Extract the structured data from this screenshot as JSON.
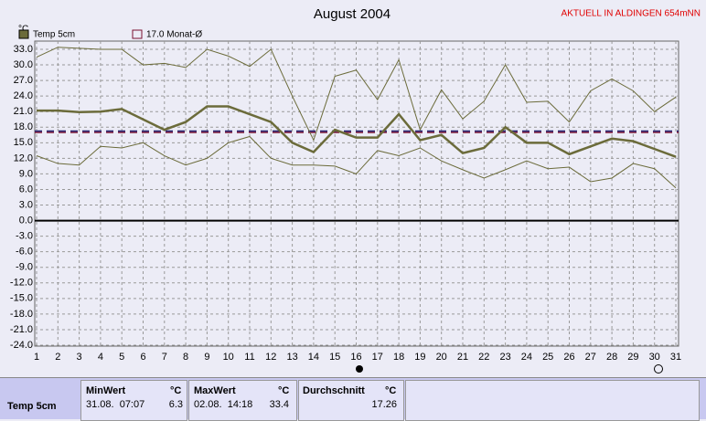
{
  "chart_data": {
    "type": "line",
    "title": "August 2004",
    "note": "AKTUELL IN ALDINGEN 654mNN",
    "unit": "°C",
    "x": [
      1,
      2,
      3,
      4,
      5,
      6,
      7,
      8,
      9,
      10,
      11,
      12,
      13,
      14,
      15,
      16,
      17,
      18,
      19,
      20,
      21,
      22,
      23,
      24,
      25,
      26,
      27,
      28,
      29,
      30,
      31
    ],
    "xlim": [
      1,
      31
    ],
    "xticks": [
      1,
      2,
      3,
      4,
      5,
      6,
      7,
      8,
      9,
      10,
      11,
      12,
      13,
      14,
      15,
      16,
      17,
      18,
      19,
      20,
      21,
      22,
      23,
      24,
      25,
      26,
      27,
      28,
      29,
      30,
      31
    ],
    "ylim": [
      -24,
      33
    ],
    "yticks": [
      {
        "value": 33,
        "label": "33.0"
      },
      {
        "value": 30,
        "label": "30.0"
      },
      {
        "value": 27,
        "label": "27.0"
      },
      {
        "value": 24,
        "label": "24.0"
      },
      {
        "value": 21,
        "label": "21.0"
      },
      {
        "value": 18,
        "label": "18.0"
      },
      {
        "value": 15,
        "label": "15.0"
      },
      {
        "value": 12,
        "label": "12.0"
      },
      {
        "value": 9,
        "label": "9.0"
      },
      {
        "value": 6,
        "label": "6.0"
      },
      {
        "value": 3,
        "label": "3.0"
      },
      {
        "value": 0,
        "label": "0.0"
      },
      {
        "value": -3,
        "label": "-3.0"
      },
      {
        "value": -6,
        "label": "-6.0"
      },
      {
        "value": -9,
        "label": "-9.0"
      },
      {
        "value": -12,
        "label": "-12.0"
      },
      {
        "value": -15,
        "label": "-15.0"
      },
      {
        "value": -18,
        "label": "-18.0"
      },
      {
        "value": -21,
        "label": "-21.0"
      },
      {
        "value": -24,
        "label": "-24.0"
      }
    ],
    "grid": true,
    "series": [
      {
        "name": "Temp 5cm",
        "color": "#6b6b3a",
        "values": [
          21.2,
          21.2,
          20.9,
          21.0,
          21.5,
          19.5,
          17.5,
          19.0,
          22.0,
          22.0,
          20.5,
          19.0,
          15.0,
          13.2,
          17.5,
          16.0,
          16.0,
          20.5,
          15.5,
          16.5,
          13.0,
          14.0,
          18.0,
          15.0,
          15.0,
          12.8,
          14.3,
          15.8,
          15.3,
          13.8,
          12.3
        ],
        "max": [
          31.5,
          33.4,
          33.2,
          33.0,
          33.0,
          30.0,
          30.3,
          29.5,
          33.0,
          31.7,
          29.7,
          33.0,
          24.0,
          15.5,
          27.8,
          29.0,
          23.3,
          31.0,
          17.5,
          25.2,
          19.6,
          23.0,
          30.0,
          22.8,
          23.0,
          19.0,
          25.0,
          27.3,
          25.0,
          21.0,
          23.8
        ],
        "min": [
          12.5,
          11.0,
          10.7,
          14.3,
          14.0,
          15.0,
          12.5,
          10.7,
          12.0,
          15.0,
          16.2,
          12.0,
          10.7,
          10.7,
          10.5,
          9.0,
          13.5,
          12.5,
          14.0,
          11.5,
          9.8,
          8.2,
          9.8,
          11.5,
          10.0,
          10.3,
          7.5,
          8.2,
          11.0,
          10.0,
          6.3
        ]
      }
    ],
    "reference": {
      "label": "17.0 Monat-Ø",
      "value": 17.0,
      "color": "#7a1030"
    }
  },
  "table": {
    "headers": [
      "MinWert",
      "°C",
      "MaxWert",
      "°C",
      "Durchschnitt",
      "°C"
    ],
    "rows": [
      {
        "name": "Temp 5cm",
        "min_time": "31.08.  07:07",
        "min": 6.3,
        "max_time": "02.08.  14:18",
        "max": 33.4,
        "avg": 17.26
      }
    ]
  }
}
